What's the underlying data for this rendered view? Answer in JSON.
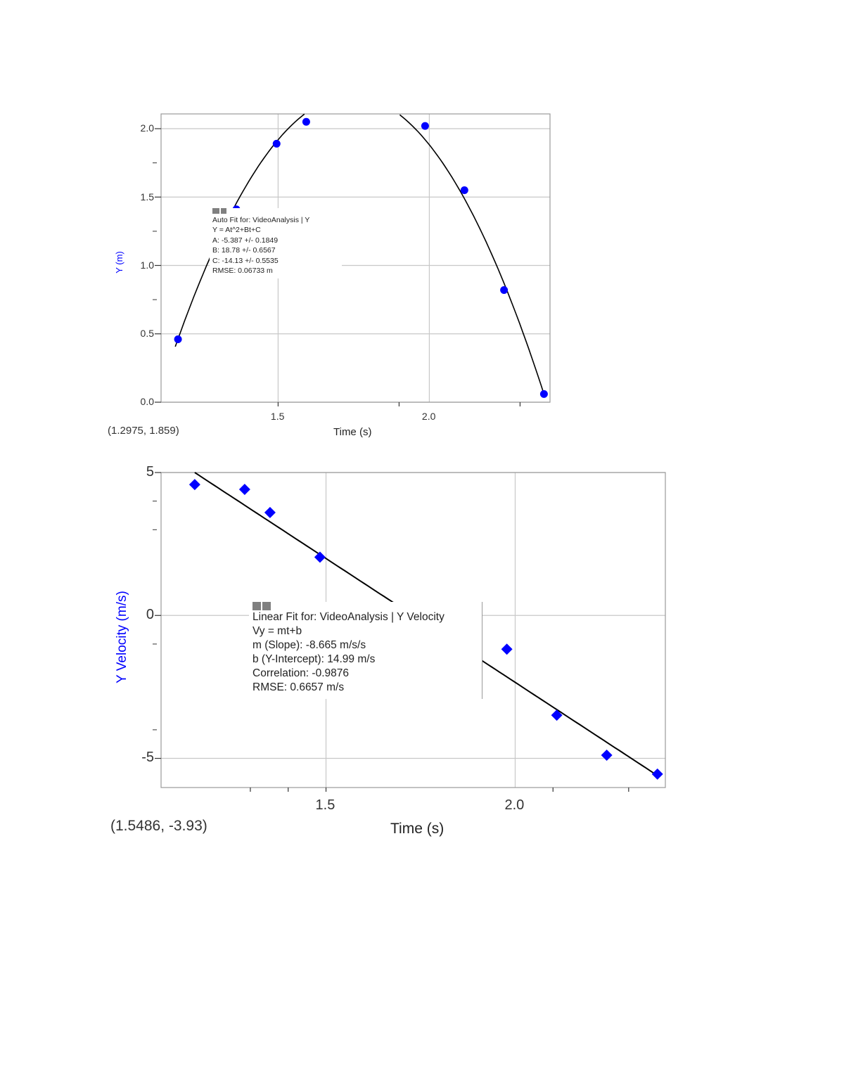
{
  "chart_data": [
    {
      "type": "scatter",
      "title": "",
      "xlabel": "Time (s)",
      "ylabel": "Y (m)",
      "xlim": [
        1.113,
        2.399
      ],
      "ylim": [
        0.0,
        2.108
      ],
      "grid": true,
      "x_ticks": [
        {
          "value": 1.5,
          "label": "1.5"
        },
        {
          "value": 2.0,
          "label": "2.0"
        }
      ],
      "y_ticks": [
        {
          "value": 0.0,
          "label": "0.0"
        },
        {
          "value": 0.5,
          "label": "0.5"
        },
        {
          "value": 1.0,
          "label": "1.0"
        },
        {
          "value": 1.5,
          "label": "1.5"
        },
        {
          "value": 2.0,
          "label": "2.0"
        }
      ],
      "series": [
        {
          "name": "Y",
          "marker": "circle",
          "color": "#0000ff",
          "x": [
            1.169,
            1.362,
            1.495,
            1.593,
            1.986,
            2.116,
            2.247,
            2.379
          ],
          "y": [
            0.46,
            1.41,
            1.89,
            2.05,
            2.02,
            1.55,
            0.82,
            0.06
          ]
        }
      ],
      "fit": {
        "type": "quadratic",
        "A": -5.387,
        "B": 18.78,
        "C": -14.13,
        "t_range": [
          1.16,
          2.38
        ]
      },
      "annotation": {
        "lines": [
          "Auto Fit for: VideoAnalysis | Y",
          "Y = At^2+Bt+C",
          "A: -5.387 +/- 0.1849",
          "B: 18.78 +/- 0.6567",
          "C: -14.13 +/- 0.5535",
          "RMSE: 0.06733 m"
        ]
      },
      "cursor_coords": "(1.2975, 1.859)"
    },
    {
      "type": "scatter",
      "title": "",
      "xlabel": "Time (s)",
      "ylabel": "Y Velocity (m/s)",
      "xlim": [
        1.064,
        2.397
      ],
      "ylim": [
        -6.02,
        5.0
      ],
      "grid": true,
      "x_ticks": [
        {
          "value": 1.5,
          "label": "1.5"
        },
        {
          "value": 2.0,
          "label": "2.0"
        }
      ],
      "y_ticks": [
        {
          "value": -5,
          "label": "-5"
        },
        {
          "value": 0,
          "label": "0"
        },
        {
          "value": 5,
          "label": "5"
        }
      ],
      "series": [
        {
          "name": "Y Velocity",
          "marker": "diamond",
          "color": "#0000ff",
          "x": [
            1.153,
            1.285,
            1.352,
            1.484,
            1.978,
            2.11,
            2.242,
            2.376
          ],
          "y": [
            4.58,
            4.41,
            3.6,
            2.04,
            -1.18,
            -3.49,
            -4.89,
            -5.55
          ]
        }
      ],
      "fit": {
        "type": "linear",
        "m": -8.665,
        "b": 14.99,
        "t_range": [
          1.153,
          2.376
        ]
      },
      "annotation": {
        "lines": [
          "Linear Fit for: VideoAnalysis | Y Velocity",
          "Vy = mt+b",
          "m (Slope): -8.665 m/s/s",
          "b (Y-Intercept): 14.99 m/s",
          "Correlation: -0.9876",
          "RMSE: 0.6657 m/s"
        ]
      },
      "cursor_coords": "(1.5486, -3.93)"
    }
  ],
  "colors": {
    "data": "#0000ff",
    "fit": "#000000",
    "grid": "#c8c8c8",
    "frame": "#999999",
    "ylabel": "#0000ff"
  }
}
